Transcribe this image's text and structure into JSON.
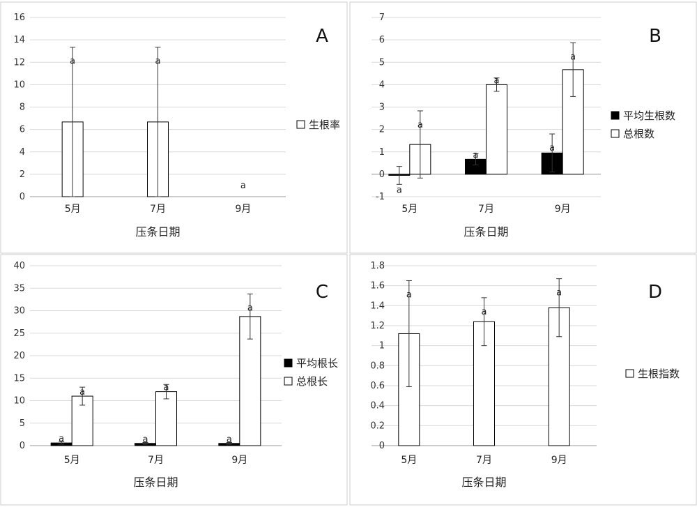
{
  "chart_data": [
    {
      "panel": "A",
      "type": "bar",
      "categories": [
        "5月",
        "7月",
        "9月"
      ],
      "xlabel": "压条日期",
      "ylim": [
        0,
        16
      ],
      "yticks": [
        0,
        2,
        4,
        6,
        8,
        10,
        12,
        14,
        16
      ],
      "grid": true,
      "legend_position": "right",
      "series": [
        {
          "name": "生根率",
          "values": [
            6.67,
            6.67,
            0
          ],
          "errors": [
            6.67,
            6.67,
            0
          ],
          "fill": "#ffffff",
          "sig": [
            "a",
            "a",
            "a"
          ]
        }
      ]
    },
    {
      "panel": "B",
      "type": "bar",
      "categories": [
        "5月",
        "7月",
        "9月"
      ],
      "xlabel": "压条日期",
      "ylim": [
        -1,
        7
      ],
      "yticks": [
        -1,
        0,
        1,
        2,
        3,
        4,
        5,
        6,
        7
      ],
      "grid": true,
      "legend_position": "right",
      "series": [
        {
          "name": "平均生根数",
          "values": [
            -0.05,
            0.67,
            0.95
          ],
          "errors": [
            0.4,
            0.25,
            0.85
          ],
          "fill": "#000000",
          "sig": [
            "a",
            "a",
            "a"
          ]
        },
        {
          "name": "总根数",
          "values": [
            1.33,
            4.0,
            4.67
          ],
          "errors": [
            1.5,
            0.3,
            1.2
          ],
          "fill": "#ffffff",
          "sig": [
            "a",
            "a",
            "a"
          ]
        }
      ]
    },
    {
      "panel": "C",
      "type": "bar",
      "categories": [
        "5月",
        "7月",
        "9月"
      ],
      "xlabel": "压条日期",
      "ylim": [
        0,
        40
      ],
      "yticks": [
        0,
        5,
        10,
        15,
        20,
        25,
        30,
        35,
        40
      ],
      "grid": true,
      "legend_position": "right",
      "series": [
        {
          "name": "平均根长",
          "values": [
            0.6,
            0.5,
            0.5
          ],
          "errors": [
            0.3,
            0.2,
            0.2
          ],
          "fill": "#000000",
          "sig": [
            "a",
            "a",
            "a"
          ]
        },
        {
          "name": "总根长",
          "values": [
            11.0,
            12.0,
            28.7
          ],
          "errors": [
            2.0,
            1.6,
            5.0
          ],
          "fill": "#ffffff",
          "sig": [
            "a",
            "a",
            "a"
          ]
        }
      ]
    },
    {
      "panel": "D",
      "type": "bar",
      "categories": [
        "5月",
        "7月",
        "9月"
      ],
      "xlabel": "压条日期",
      "ylim": [
        0,
        1.8
      ],
      "yticks": [
        0,
        0.2,
        0.4,
        0.6,
        0.8,
        1,
        1.2,
        1.4,
        1.6,
        1.8
      ],
      "grid": true,
      "legend_position": "right",
      "series": [
        {
          "name": "生根指数",
          "values": [
            1.12,
            1.24,
            1.38
          ],
          "errors": [
            0.53,
            0.24,
            0.29
          ],
          "fill": "#ffffff",
          "sig": [
            "a",
            "a",
            "a"
          ]
        }
      ]
    }
  ],
  "colors": {
    "grid": "#d9d9d9",
    "border": "#cccccc",
    "axis": "#999999",
    "bar_stroke": "#000000"
  }
}
